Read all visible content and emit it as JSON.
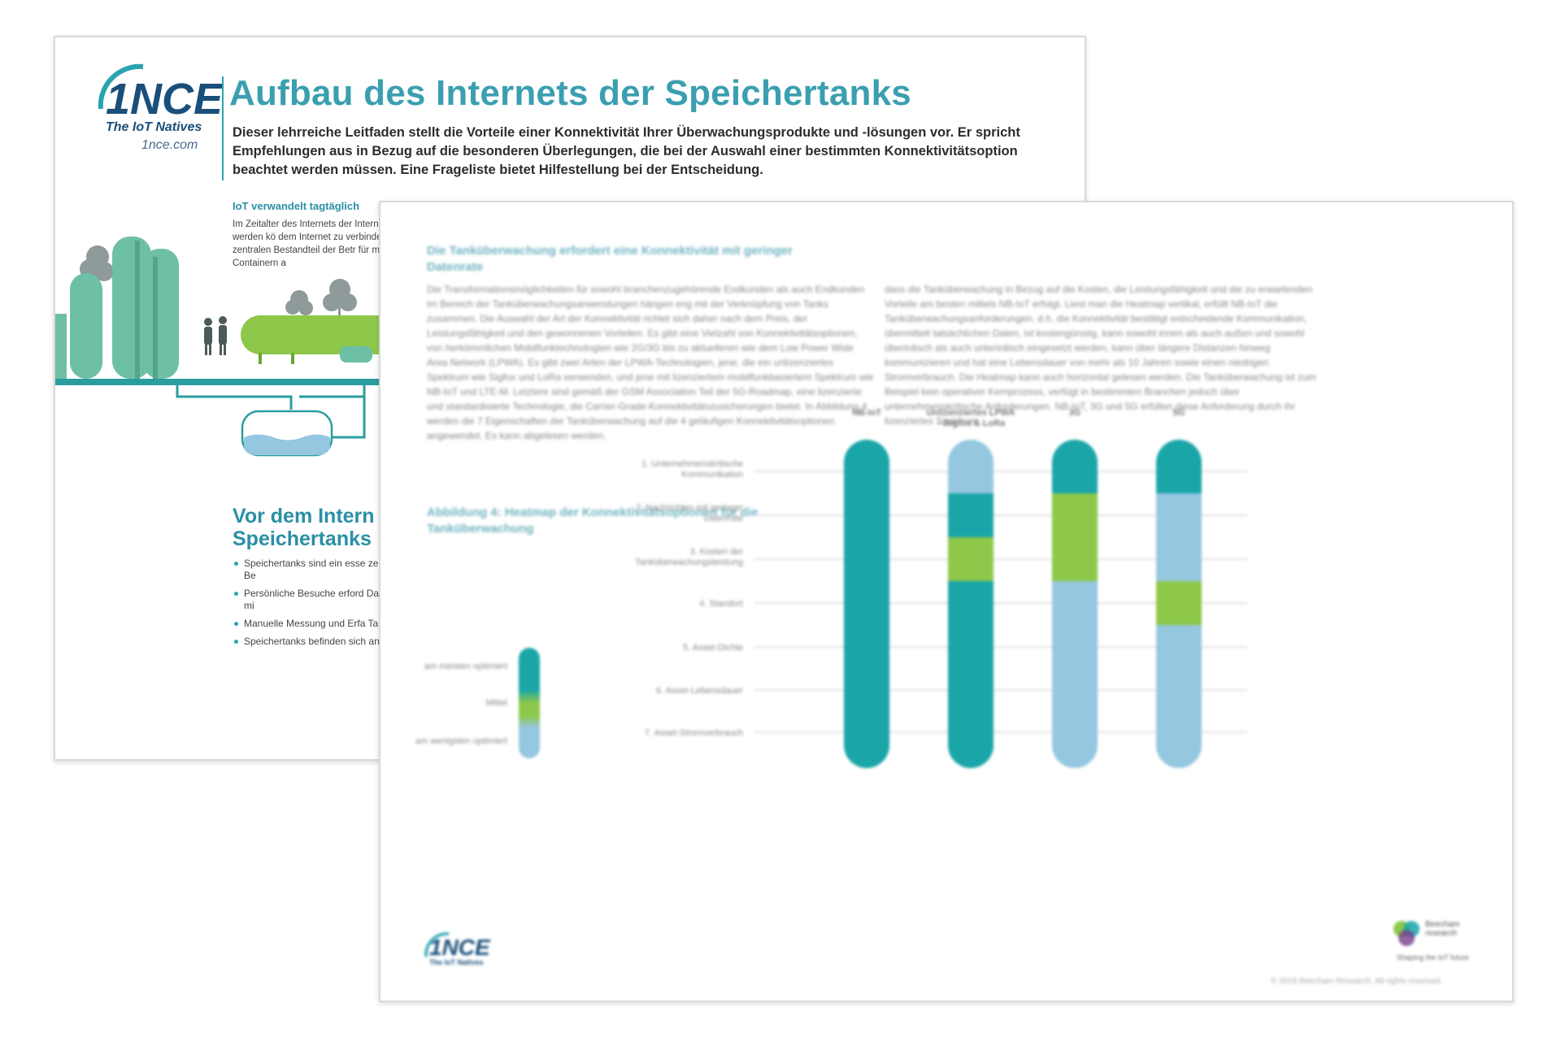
{
  "back_page": {
    "logo_text": "1NCE",
    "tagline": "The IoT Natives",
    "site": "1nce.com",
    "title": "Aufbau des Internets der Speichertanks",
    "intro": "Dieser lehrreiche Leitfaden stellt die Vorteile einer Konnektivität Ihrer Überwachungsprodukte und -lösungen vor. Er spricht Empfehlungen aus in Bezug auf die besonderen Überlegungen, die bei der Auswahl einer bestimmten Konnektivitätsoption beachtet werden müssen. Eine Frageliste bietet Hilfestellung bei der Entscheidung.",
    "section_heading": "IoT verwandelt tagtäglich",
    "section_body": "Im Zeitalter des Internets der Internet verbunden werden kö dem Internet zu verbinden, die zentralen Bestandteil der Betr für mit Silos oder Containern a",
    "vor_heading_line1": "Vor dem Intern",
    "vor_heading_line2": "Speichertanks",
    "bullets": [
      "Speichertanks sind ein esse zentraler Bestandteil der Be",
      "Persönliche Besuche erford Datenerhebung, oftmals mi",
      "Manuelle Messung und Erfa Tankfüllstände",
      "Speichertanks befinden sich an Gefahrenstellen"
    ]
  },
  "front_page": {
    "heading": "Die Tanküberwachung erfordert eine Konnektivität mit geringer Datenrate",
    "col_left": "Die Transformationsmöglichkeiten für sowohl branchenzugehörende Endkunden als auch Endkunden im Bereich der Tanküberwachungsanwendungen hängen eng mit der Verknüpfung von Tanks zusammen. Die Auswahl der Art der Konnektivität richtet sich daher nach dem Preis, der Leistungsfähigkeit und den gewonnenen Vorteilen. Es gibt eine Vielzahl von Konnektivitätsoptionen, von herkömmlichen Mobilfunktechnologien wie 2G/3G bis zu aktuelleren wie dem Low Power Wide Area Network (LPWA). Es gibt zwei Arten der LPWA-Technologien, jene, die ein unlizenziertes Spektrum wie Sigfox und LoRa verwenden, und jene mit lizenziertem mobilfunkbasiertem Spektrum wie NB-IoT und LTE-M. Letztere sind gemäß der GSM Association Teil der 5G-Roadmap, eine lizenzierte und standardisierte Technologie, die Carrier-Grade-Konnektivitätszusicherungen bietet. In Abbildung 4 werden die 7 Eigenschaften der Tanküberwachung auf die 4 geläufigen Konnektivitätsoptionen angewendet. Es kann abgelesen werden,",
    "col_right": "dass die Tanküberwachung in Bezug auf die Kosten, die Leistungsfähigkeit und die zu erwartenden Vorteile am besten mittels NB-IoT erfolgt. Liest man die Heatmap vertikal, erfüllt NB-IoT die Tanküberwachungsanforderungen, d.h. die Konnektivität bestätigt entscheidende Kommunikation, übermittelt tatsächlichen Daten, ist kostengünstig, kann sowohl innen als auch außen und sowohl überirdisch als auch unterirdisch eingesetzt werden, kann über längere Distanzen hinweg kommunizieren und hat eine Lebensdauer von mehr als 10 Jahren sowie einen niedrigen Stromverbrauch. Die Heatmap kann auch horizontal gelesen werden. Die Tanküberwachung ist zum Beispiel kein operativer Kernprozess, verfügt in bestimmten Branchen jedoch über unternehmenskritische Anforderungen. NB-IoT, 3G und 5G erfüllen diese Anforderung durch ihr lizenziertes Spektrum.",
    "figure_title": "Abbildung 4: Heatmap der Konnektivitätsoptionen für die Tanküberwachung",
    "logo_text": "1NCE",
    "logo_sub": "The IoT Natives",
    "partner_name_line1": "Beecham",
    "partner_name_line2": "research",
    "partner_sub": "Shaping the IoT future",
    "copyright": "© 2019 Beecham Research. All rights reserved."
  },
  "chart_data": {
    "type": "heatmap",
    "title": "Abbildung 4: Heatmap der Konnektivitätsoptionen für die Tanküberwachung",
    "columns": [
      "NB-IoT",
      "Unlizenziertes LPWA – Sigfox & LoRa",
      "3G",
      "5G"
    ],
    "rows": [
      "1. Unternehmenskritische Kommunikation",
      "2. Nachrichten mit geringer Datenrate",
      "3. Kosten der Tanküberwachungsleistung",
      "4. Standort",
      "5. Asset-Dichte",
      "6. Asset-Lebensdauer",
      "7. Asset-Stromverbrauch"
    ],
    "scale": {
      "levels": [
        "am meisten optimiert",
        "Mittel",
        "am wenigsten optimiert"
      ],
      "colors": [
        "#1aa5a8",
        "#8dc84a",
        "#95c7e0"
      ]
    },
    "values": [
      [
        0,
        2,
        0,
        0
      ],
      [
        0,
        0,
        1,
        2
      ],
      [
        0,
        1,
        1,
        2
      ],
      [
        0,
        0,
        2,
        1
      ],
      [
        0,
        0,
        2,
        2
      ],
      [
        0,
        0,
        2,
        2
      ],
      [
        0,
        0,
        2,
        2
      ]
    ]
  }
}
